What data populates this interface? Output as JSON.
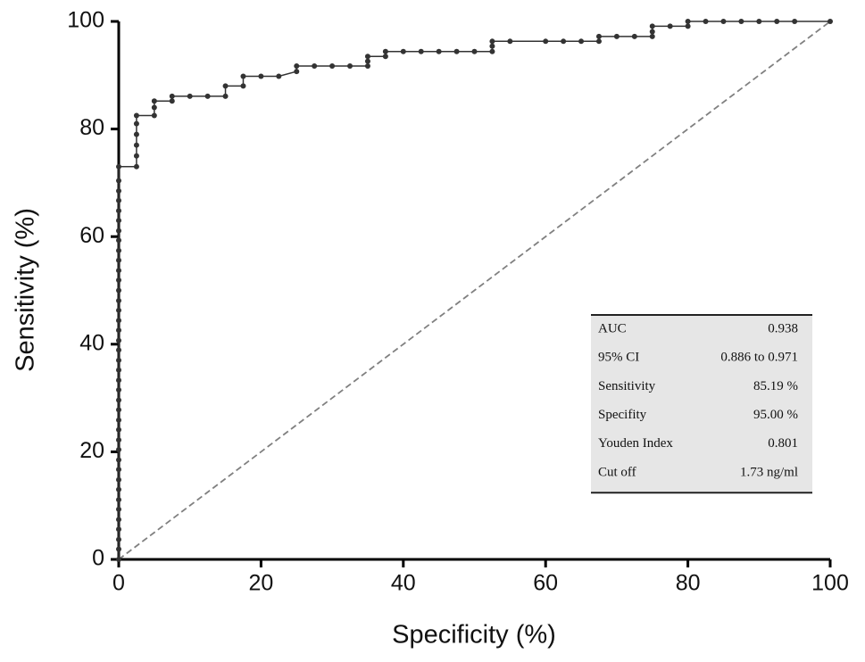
{
  "chart_data": {
    "type": "line",
    "x_label": "Specificity (%)",
    "y_label": "Sensitivity (%)",
    "xlim": [
      0,
      100
    ],
    "ylim": [
      0,
      100
    ],
    "xticks": [
      0,
      20,
      40,
      60,
      80,
      100
    ],
    "yticks": [
      0,
      20,
      40,
      60,
      80,
      100
    ],
    "color": "#333333",
    "reference_line_color": "#808080",
    "x": [
      0,
      0,
      0,
      0,
      0,
      0,
      0,
      0,
      0,
      0,
      0,
      0,
      0,
      0,
      0,
      0,
      0,
      0,
      0,
      0,
      0,
      0,
      0,
      0,
      0,
      0,
      0,
      0,
      0,
      0,
      0,
      0,
      0,
      0,
      0,
      0,
      0,
      0,
      0,
      0,
      2.5,
      2.5,
      2.5,
      2.5,
      2.5,
      2.5,
      5,
      5,
      5,
      7.5,
      7.5,
      10,
      12.5,
      15,
      15,
      17.5,
      17.5,
      20,
      22.5,
      25,
      25,
      27.5,
      30,
      32.5,
      35,
      35,
      35,
      37.5,
      37.5,
      40,
      42.5,
      45,
      47.5,
      50,
      52.5,
      52.5,
      52.5,
      55,
      60,
      62.5,
      65,
      67.5,
      67.5,
      70,
      72.5,
      75,
      75,
      75,
      77.5,
      80,
      80,
      82.5,
      85,
      87.5,
      90,
      92.5,
      95,
      100
    ],
    "y": [
      0,
      1.9,
      3.7,
      5.6,
      7.4,
      9.3,
      11.1,
      13,
      14.8,
      16.7,
      18.5,
      20.4,
      22.2,
      24.1,
      25.9,
      27.8,
      29.6,
      31.5,
      33.3,
      35.2,
      37,
      38.9,
      40.7,
      42.6,
      44.4,
      46.3,
      48.1,
      50,
      51.9,
      53.7,
      55.6,
      57.4,
      59.3,
      61.1,
      63,
      64.8,
      66.7,
      68.5,
      70.4,
      73,
      73,
      75,
      77,
      79,
      81,
      82.5,
      82.5,
      84,
      85.2,
      85.2,
      86.1,
      86.1,
      86.1,
      86.1,
      88,
      88,
      89.8,
      89.8,
      89.8,
      90.7,
      91.7,
      91.7,
      91.7,
      91.7,
      91.7,
      92.6,
      93.5,
      93.5,
      94.4,
      94.4,
      94.4,
      94.4,
      94.4,
      94.4,
      94.4,
      95.4,
      96.3,
      96.3,
      96.3,
      96.3,
      96.3,
      96.3,
      97.2,
      97.2,
      97.2,
      97.2,
      98.1,
      99.1,
      99.1,
      99.1,
      100,
      100,
      100,
      100,
      100,
      100,
      100,
      100
    ],
    "stats_table": [
      [
        "AUC",
        "0.938"
      ],
      [
        "95%  CI",
        "0.886 to 0.971"
      ],
      [
        "Sensitivity",
        "85.19 %"
      ],
      [
        "Specifity",
        "95.00 %"
      ],
      [
        "Youden Index",
        "0.801"
      ],
      [
        " Cut off",
        "1.73 ng/ml"
      ]
    ]
  }
}
